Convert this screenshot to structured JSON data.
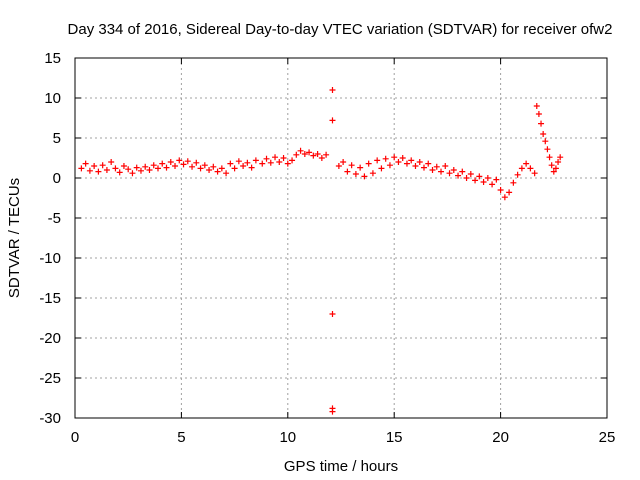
{
  "chart_data": {
    "type": "scatter",
    "title": "Day 334 of 2016, Sidereal Day-to-day VTEC variation (SDTVAR) for receiver ofw2",
    "xlabel": "GPS time / hours",
    "ylabel": "SDTVAR / TECUs",
    "xlim": [
      0,
      25
    ],
    "ylim": [
      -30,
      15
    ],
    "xticks": [
      0,
      5,
      10,
      15,
      20,
      25
    ],
    "yticks": [
      15,
      10,
      5,
      0,
      -5,
      -10,
      -15,
      -20,
      -25,
      -30
    ],
    "grid": true,
    "marker": "+",
    "color": "#ff0000",
    "series": [
      {
        "name": "SDTVAR",
        "points": [
          [
            0.3,
            1.2
          ],
          [
            0.5,
            1.8
          ],
          [
            0.7,
            0.9
          ],
          [
            0.9,
            1.5
          ],
          [
            1.1,
            0.8
          ],
          [
            1.3,
            1.6
          ],
          [
            1.5,
            1.0
          ],
          [
            1.7,
            2.0
          ],
          [
            1.9,
            1.2
          ],
          [
            2.1,
            0.7
          ],
          [
            2.3,
            1.5
          ],
          [
            2.5,
            1.1
          ],
          [
            2.7,
            0.6
          ],
          [
            2.9,
            1.3
          ],
          [
            3.1,
            0.9
          ],
          [
            3.3,
            1.4
          ],
          [
            3.5,
            1.0
          ],
          [
            3.7,
            1.6
          ],
          [
            3.9,
            1.2
          ],
          [
            4.1,
            1.8
          ],
          [
            4.3,
            1.3
          ],
          [
            4.5,
            2.0
          ],
          [
            4.7,
            1.5
          ],
          [
            4.9,
            2.2
          ],
          [
            5.1,
            1.7
          ],
          [
            5.3,
            2.1
          ],
          [
            5.5,
            1.4
          ],
          [
            5.7,
            1.9
          ],
          [
            5.9,
            1.2
          ],
          [
            6.1,
            1.6
          ],
          [
            6.3,
            1.0
          ],
          [
            6.5,
            1.4
          ],
          [
            6.7,
            0.8
          ],
          [
            6.9,
            1.2
          ],
          [
            7.1,
            0.6
          ],
          [
            7.3,
            1.8
          ],
          [
            7.5,
            1.2
          ],
          [
            7.7,
            2.1
          ],
          [
            7.9,
            1.5
          ],
          [
            8.1,
            1.9
          ],
          [
            8.3,
            1.3
          ],
          [
            8.5,
            2.2
          ],
          [
            8.8,
            1.8
          ],
          [
            9.0,
            2.4
          ],
          [
            9.2,
            1.9
          ],
          [
            9.4,
            2.6
          ],
          [
            9.6,
            2.0
          ],
          [
            9.8,
            2.5
          ],
          [
            10.0,
            1.8
          ],
          [
            10.2,
            2.2
          ],
          [
            10.4,
            2.9
          ],
          [
            10.6,
            3.4
          ],
          [
            10.8,
            3.0
          ],
          [
            11.0,
            3.2
          ],
          [
            11.2,
            2.8
          ],
          [
            11.4,
            3.0
          ],
          [
            11.6,
            2.5
          ],
          [
            11.8,
            2.9
          ],
          [
            12.1,
            11.0
          ],
          [
            12.1,
            7.2
          ],
          [
            12.1,
            -17.0
          ],
          [
            12.1,
            -28.8
          ],
          [
            12.1,
            -29.2
          ],
          [
            12.4,
            1.5
          ],
          [
            12.6,
            2.0
          ],
          [
            12.8,
            0.8
          ],
          [
            13.0,
            1.6
          ],
          [
            13.2,
            0.5
          ],
          [
            13.4,
            1.3
          ],
          [
            13.6,
            0.2
          ],
          [
            13.8,
            1.8
          ],
          [
            14.0,
            0.6
          ],
          [
            14.2,
            2.2
          ],
          [
            14.4,
            1.2
          ],
          [
            14.6,
            2.4
          ],
          [
            14.8,
            1.6
          ],
          [
            15.0,
            2.6
          ],
          [
            15.2,
            2.0
          ],
          [
            15.4,
            2.5
          ],
          [
            15.6,
            1.8
          ],
          [
            15.8,
            2.2
          ],
          [
            16.0,
            1.5
          ],
          [
            16.2,
            2.0
          ],
          [
            16.4,
            1.3
          ],
          [
            16.6,
            1.8
          ],
          [
            16.8,
            1.0
          ],
          [
            17.0,
            1.4
          ],
          [
            17.2,
            0.8
          ],
          [
            17.4,
            1.5
          ],
          [
            17.6,
            0.6
          ],
          [
            17.8,
            1.0
          ],
          [
            18.0,
            0.3
          ],
          [
            18.2,
            0.8
          ],
          [
            18.4,
            0.0
          ],
          [
            18.6,
            0.5
          ],
          [
            18.8,
            -0.3
          ],
          [
            19.0,
            0.2
          ],
          [
            19.2,
            -0.5
          ],
          [
            19.4,
            0.0
          ],
          [
            19.6,
            -0.8
          ],
          [
            19.8,
            -0.2
          ],
          [
            20.0,
            -1.5
          ],
          [
            20.2,
            -2.4
          ],
          [
            20.4,
            -1.8
          ],
          [
            20.6,
            -0.6
          ],
          [
            20.8,
            0.4
          ],
          [
            21.0,
            1.2
          ],
          [
            21.2,
            1.8
          ],
          [
            21.4,
            1.2
          ],
          [
            21.6,
            0.6
          ],
          [
            21.7,
            9.0
          ],
          [
            21.8,
            8.0
          ],
          [
            21.9,
            6.8
          ],
          [
            22.0,
            5.5
          ],
          [
            22.1,
            4.6
          ],
          [
            22.2,
            3.6
          ],
          [
            22.3,
            2.6
          ],
          [
            22.4,
            1.6
          ],
          [
            22.5,
            0.8
          ],
          [
            22.6,
            1.2
          ],
          [
            22.7,
            2.0
          ],
          [
            22.8,
            2.6
          ]
        ]
      }
    ]
  }
}
